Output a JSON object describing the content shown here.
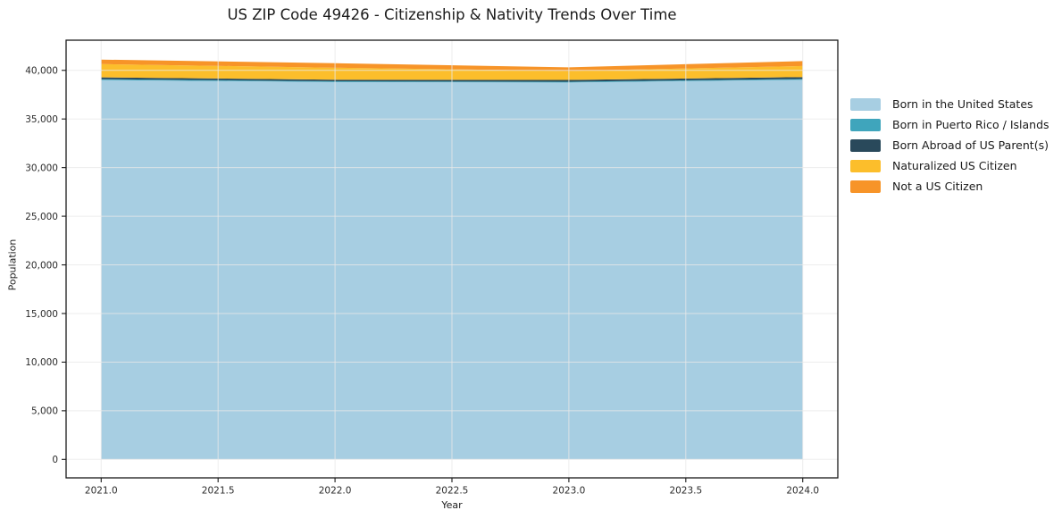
{
  "figure": {
    "title": "US ZIP Code 49426 - Citizenship & Nativity Trends Over Time",
    "xlabel": "Year",
    "ylabel": "Population"
  },
  "chart_data": {
    "type": "area",
    "stacked": true,
    "title": "US ZIP Code 49426 - Citizenship & Nativity Trends Over Time",
    "xlabel": "Year",
    "ylabel": "Population",
    "x": [
      2021,
      2022,
      2023,
      2024
    ],
    "series": [
      {
        "name": "Born in the United States",
        "color": "#A7CEE2",
        "values": [
          39000,
          38800,
          38750,
          39030
        ]
      },
      {
        "name": "Born in Puerto Rico / Islands",
        "color": "#3FA5BC",
        "values": [
          90,
          80,
          85,
          90
        ]
      },
      {
        "name": "Born Abroad of US Parent(s)",
        "color": "#29495B",
        "values": [
          185,
          160,
          175,
          185
        ]
      },
      {
        "name": "Naturalized US Citizen",
        "color": "#FCBE2B",
        "values": [
          1370,
          1230,
          930,
          1140
        ]
      },
      {
        "name": "Not a US Citizen",
        "color": "#F79428",
        "values": [
          460,
          460,
          370,
          510
        ]
      }
    ],
    "x_ticks": [
      2021.0,
      2021.5,
      2022.0,
      2022.5,
      2023.0,
      2023.5,
      2024.0
    ],
    "x_tick_labels": [
      "2021.0",
      "2021.5",
      "2022.0",
      "2022.5",
      "2023.0",
      "2023.5",
      "2024.0"
    ],
    "y_ticks": [
      0,
      5000,
      10000,
      15000,
      20000,
      25000,
      30000,
      35000,
      40000
    ],
    "y_tick_labels": [
      "0",
      "5,000",
      "10,000",
      "15,000",
      "20,000",
      "25,000",
      "30,000",
      "35,000",
      "40,000"
    ],
    "xlim": [
      2020.85,
      2024.15
    ],
    "ylim": [
      -1900,
      43100
    ],
    "grid": true,
    "legend_position": "right",
    "grid_color": "#e9e9e9",
    "spine_color": "#1a1a1a",
    "tick_label_color": "#2b2b2b"
  }
}
